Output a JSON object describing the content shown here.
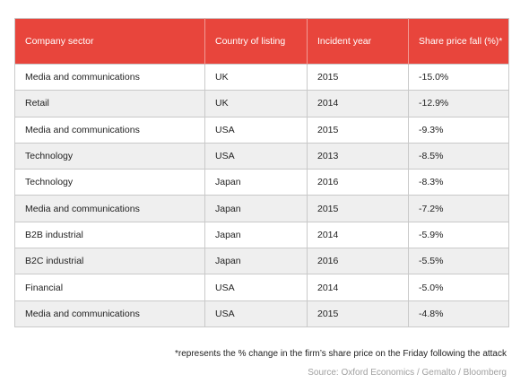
{
  "chart_data": {
    "type": "table",
    "columns": [
      "Company sector",
      "Country of listing",
      "Incident year",
      "Share price fall (%)*"
    ],
    "rows": [
      [
        "Media and communications",
        "UK",
        "2015",
        "-15.0%"
      ],
      [
        "Retail",
        "UK",
        "2014",
        "-12.9%"
      ],
      [
        "Media and communications",
        "USA",
        "2015",
        "-9.3%"
      ],
      [
        "Technology",
        "USA",
        "2013",
        "-8.5%"
      ],
      [
        "Technology",
        "Japan",
        "2016",
        "-8.3%"
      ],
      [
        "Media and communications",
        "Japan",
        "2015",
        "-7.2%"
      ],
      [
        "B2B industrial",
        "Japan",
        "2014",
        "-5.9%"
      ],
      [
        "B2C industrial",
        "Japan",
        "2016",
        "-5.5%"
      ],
      [
        "Financial",
        "USA",
        "2014",
        "-5.0%"
      ],
      [
        "Media and communications",
        "USA",
        "2015",
        "-4.8%"
      ]
    ],
    "footnote": "*represents the % change in the firm’s share price on the Friday following the attack",
    "source": "Source: Oxford Economics / Gemalto / Bloomberg"
  },
  "colors": {
    "header_background": "#e8453c",
    "header_text": "#ffffff",
    "alternate_row": "#efefef",
    "source_text": "#a0a0a0"
  }
}
